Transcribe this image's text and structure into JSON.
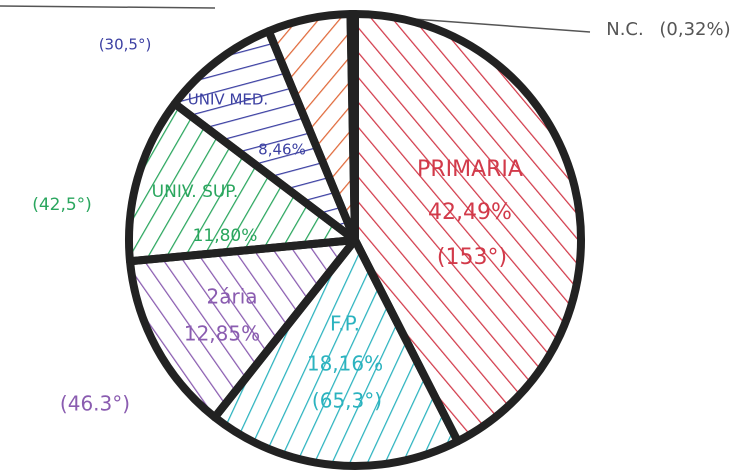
{
  "chart_data": {
    "type": "pie",
    "categories": [
      "PRIMARIA",
      "F.P.",
      "2ária",
      "UNIV. SUP.",
      "UNIV MED.",
      null,
      "N.C."
    ],
    "values": [
      42.49,
      18.16,
      12.85,
      11.8,
      8.46,
      5.92,
      0.32
    ],
    "value_labels": [
      "42,49%",
      "18,16%",
      "12,85%",
      "11,80%",
      "8,46%",
      null,
      "(0,32%)"
    ],
    "angle_labels": [
      "(153°)",
      "(65,3°)",
      "(46.3°)",
      "(42,5°)",
      "(30,5°)",
      null,
      null
    ],
    "colors": [
      "#d23a4a",
      "#2bb3bf",
      "#8a5cb0",
      "#2aa65e",
      "#3c40a2",
      "#e0693a",
      "#8a8a8a"
    ]
  }
}
